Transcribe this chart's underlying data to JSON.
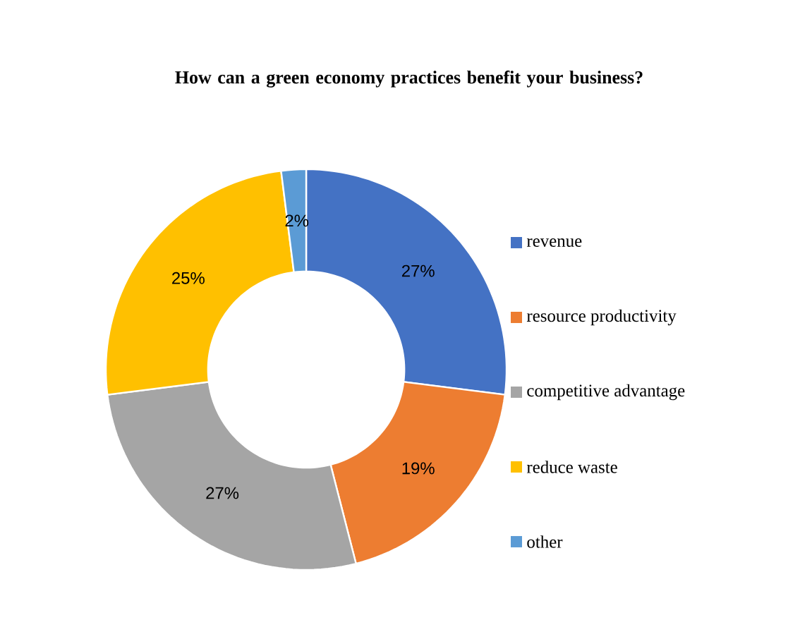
{
  "chart_data": {
    "type": "donut",
    "title": "How can a green economy practices benefit your business?",
    "categories": [
      "revenue",
      "resource productivity",
      "competitive advantage",
      "reduce waste",
      "other"
    ],
    "values": [
      27,
      19,
      27,
      25,
      2
    ],
    "value_labels": [
      "27%",
      "19%",
      "27%",
      "25%",
      "2%"
    ],
    "colors": [
      "#4472c4",
      "#ed7d31",
      "#a5a5a5",
      "#ffc000",
      "#5b9bd5"
    ],
    "legend": "right"
  }
}
